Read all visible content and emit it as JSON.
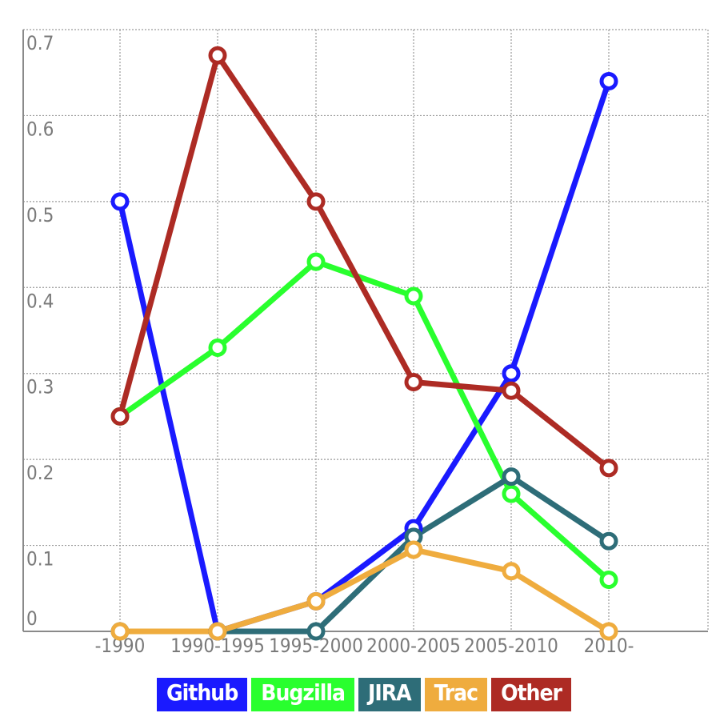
{
  "chart_data": {
    "type": "line",
    "categories": [
      "-1990",
      "1990-1995",
      "1995-2000",
      "2000-2005",
      "2005-2010",
      "2010-"
    ],
    "y_ticks": [
      "0",
      "0.1",
      "0.2",
      "0.3",
      "0.4",
      "0.5",
      "0.6",
      "0.7"
    ],
    "ylim": [
      0,
      0.7
    ],
    "grid": true,
    "legend_position": "bottom",
    "series": [
      {
        "name": "Github",
        "color": "#1a1aff",
        "values": [
          0.5,
          0.0,
          0.035,
          0.12,
          0.3,
          0.64
        ]
      },
      {
        "name": "Bugzilla",
        "color": "#29ff2e",
        "values": [
          0.25,
          0.33,
          0.43,
          0.39,
          0.16,
          0.06
        ]
      },
      {
        "name": "JIRA",
        "color": "#2e6d78",
        "values": [
          0.0,
          0.0,
          0.0,
          0.11,
          0.18,
          0.105
        ]
      },
      {
        "name": "Trac",
        "color": "#efac3e",
        "values": [
          0.0,
          0.0,
          0.035,
          0.095,
          0.07,
          0.0
        ]
      },
      {
        "name": "Other",
        "color": "#ad2b24",
        "values": [
          0.25,
          0.67,
          0.5,
          0.29,
          0.28,
          0.19
        ]
      }
    ]
  }
}
